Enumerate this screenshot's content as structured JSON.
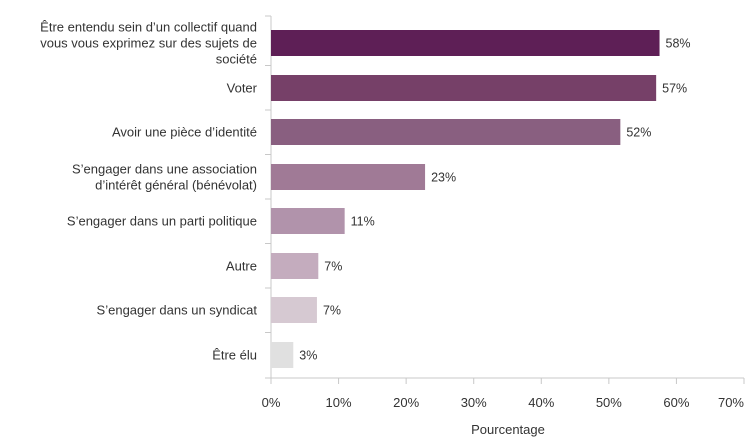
{
  "chart_data": {
    "type": "bar",
    "orientation": "horizontal",
    "categories": [
      [
        "Être entendu sein d’un collectif quand",
        "vous vous exprimez sur des sujets de",
        "société"
      ],
      [
        "Voter"
      ],
      [
        "Avoir une pièce d’identité"
      ],
      [
        "S’engager dans une association",
        "d’intérêt général (bénévolat)"
      ],
      [
        "S’engager dans un parti politique"
      ],
      [
        "Autre"
      ],
      [
        "S’engager dans un syndicat"
      ],
      [
        "Être élu"
      ]
    ],
    "values": [
      57.5,
      57,
      51.7,
      22.8,
      10.9,
      7,
      6.8,
      3.3
    ],
    "value_labels": [
      "58%",
      "57%",
      "52%",
      "23%",
      "11%",
      "7%",
      "7%",
      "3%"
    ],
    "bar_colors": [
      "#5e1f56",
      "#764068",
      "#895f80",
      "#a07a96",
      "#b193ab",
      "#c4acbe",
      "#d6c9d2",
      "#e0e0e0"
    ],
    "xlabel": "Pourcentage",
    "ylabel": "",
    "xlim": [
      0,
      70
    ],
    "x_ticks": [
      0,
      10,
      20,
      30,
      40,
      50,
      60,
      70
    ],
    "x_tick_labels": [
      "0%",
      "10%",
      "20%",
      "30%",
      "40%",
      "50%",
      "60%",
      "70%"
    ],
    "grid": false
  }
}
